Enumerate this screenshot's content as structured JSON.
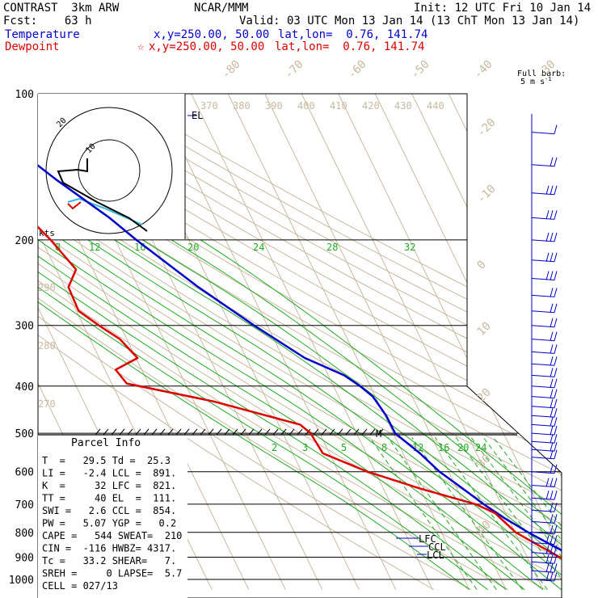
{
  "header": {
    "left_line1": "CONTRAST  3km ARW",
    "left_line2": "Fcst:    63 h",
    "center_line1": "NCAR/MMM",
    "right_line1": "Init: 12 UTC Fri 10 Jan 14",
    "right_line2": "Valid: 03 UTC Mon 13 Jan 14 (13 ChT Mon 13 Jan 14)",
    "temp_label": "Temperature",
    "temp_xy": "x,y=250.00, 50.00",
    "temp_latlon": "lat,lon=  0.76, 141.74",
    "dew_label": "Dewpoint",
    "dew_xy": "x,y=250.00, 50.00",
    "dew_latlon": "lat,lon=  0.76, 141.74",
    "colors": {
      "temperature": "#0000cc",
      "dewpoint": "#dd0000"
    }
  },
  "barb_legend": {
    "line1": "Full barb:",
    "line2": "5 m s",
    "superscript": "-1"
  },
  "hodograph": {
    "ring_label": "20",
    "inner_label": "10",
    "units_label": "kts",
    "segment_colors": [
      "#dd0000",
      "#33bbdd",
      "#000000"
    ]
  },
  "parcel_info": {
    "title": "Parcel Info",
    "rows": [
      "T  =   29.5 Td =  25.3",
      "LI =   -2.4 LCL =  891.",
      "K  =     32 LFC =  821.",
      "TT =     40 EL  =  111.",
      "SWI =   2.6 CCL =  854.",
      "PW =   5.07 YGP =   0.2",
      "CAPE =   544 SWEAT=  210",
      "CIN =  -116 HWBZ= 4317.",
      "Tc =   33.2 SHEAR=   7.",
      "SREH =     0 LAPSE=  5.7",
      "CELL = 027/13"
    ]
  },
  "markers": {
    "el": "EL",
    "lfc": "LFC",
    "ccl": "CCL",
    "lcl": "LCL",
    "m": "M"
  },
  "chart_data": {
    "type": "line",
    "title": "",
    "xlabel": "",
    "ylabel": "",
    "pressure_axis": {
      "ticks": [
        100,
        200,
        300,
        400,
        500,
        600,
        700,
        800,
        900,
        1000
      ],
      "labels": [
        "100",
        "200",
        "300",
        "400",
        "500",
        "600",
        "700",
        "800",
        "900",
        "1000"
      ],
      "log_scale": true,
      "ylim": [
        1000,
        100
      ]
    },
    "temperature_isotherm_labels": [
      -80,
      -70,
      -60,
      -50,
      -40,
      -30,
      -20,
      -10,
      0,
      10,
      20,
      30,
      40
    ],
    "theta_labels_upper": [
      370,
      380,
      390,
      400,
      410,
      420,
      430,
      440
    ],
    "theta_labels_lower": [
      290,
      280,
      270
    ],
    "mixing_ratio_labels_upper": [
      8,
      12,
      16,
      20,
      24,
      28,
      32
    ],
    "mixing_ratio_labels_lower": [
      2,
      3,
      5,
      8,
      12,
      16,
      20,
      24
    ],
    "series": [
      {
        "name": "Temperature",
        "color": "#0000cc",
        "points": [
          [
            100,
            -79.5
          ],
          [
            110,
            -80.0
          ],
          [
            120,
            -78.5
          ],
          [
            150,
            -68.2
          ],
          [
            180,
            -58.7
          ],
          [
            200,
            -54.3
          ],
          [
            250,
            -43.7
          ],
          [
            300,
            -33.6
          ],
          [
            350,
            -24.1
          ],
          [
            380,
            -15.7
          ],
          [
            400,
            -12.8
          ],
          [
            420,
            -10.7
          ],
          [
            460,
            -9.6
          ],
          [
            500,
            -9.5
          ],
          [
            550,
            -5.4
          ],
          [
            600,
            -2.5
          ],
          [
            650,
            1.6
          ],
          [
            700,
            5.2
          ],
          [
            750,
            9.2
          ],
          [
            800,
            13.6
          ],
          [
            850,
            18.3
          ],
          [
            891,
            22.2
          ],
          [
            920,
            24.8
          ],
          [
            950,
            25.6
          ],
          [
            1000,
            29.5
          ]
        ]
      },
      {
        "name": "Dewpoint",
        "color": "#dd0000",
        "points": [
          [
            100,
            -80.3
          ],
          [
            115,
            -86.2
          ],
          [
            130,
            -86.8
          ],
          [
            150,
            -85.8
          ],
          [
            170,
            -82.3
          ],
          [
            200,
            -77.6
          ],
          [
            230,
            -74.6
          ],
          [
            250,
            -79.0
          ],
          [
            280,
            -79.4
          ],
          [
            300,
            -75.8
          ],
          [
            320,
            -71.9
          ],
          [
            350,
            -69.6
          ],
          [
            370,
            -77.1
          ],
          [
            395,
            -75.9
          ],
          [
            430,
            -54.7
          ],
          [
            480,
            -34.2
          ],
          [
            500,
            -32.5
          ],
          [
            550,
            -31.8
          ],
          [
            600,
            -22.1
          ],
          [
            650,
            -10.0
          ],
          [
            700,
            3.0
          ],
          [
            730,
            7.1
          ],
          [
            800,
            10.2
          ],
          [
            850,
            14.6
          ],
          [
            920,
            20.5
          ],
          [
            950,
            24.4
          ],
          [
            1000,
            25.3
          ]
        ]
      }
    ],
    "wind_barbs_kts_levels": [
      [
        120,
        5
      ],
      [
        140,
        10
      ],
      [
        160,
        15
      ],
      [
        180,
        15
      ],
      [
        200,
        15
      ],
      [
        220,
        15
      ],
      [
        240,
        15
      ],
      [
        260,
        10
      ],
      [
        280,
        10
      ],
      [
        300,
        10
      ],
      [
        320,
        10
      ],
      [
        340,
        10
      ],
      [
        360,
        10
      ],
      [
        380,
        10
      ],
      [
        400,
        10
      ],
      [
        420,
        10
      ],
      [
        440,
        10
      ],
      [
        460,
        10
      ],
      [
        480,
        10
      ],
      [
        500,
        10
      ],
      [
        520,
        10
      ],
      [
        540,
        10
      ],
      [
        560,
        10
      ],
      [
        600,
        10
      ],
      [
        640,
        15
      ],
      [
        680,
        15
      ],
      [
        720,
        10
      ],
      [
        760,
        10
      ],
      [
        800,
        10
      ],
      [
        840,
        15
      ],
      [
        880,
        15
      ],
      [
        920,
        15
      ],
      [
        960,
        15
      ],
      [
        1000,
        15
      ]
    ],
    "grid": true
  }
}
